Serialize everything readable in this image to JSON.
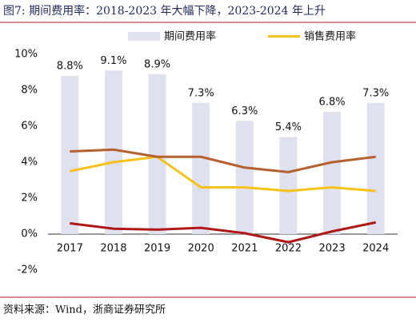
{
  "title": "图7:  期间费用率：2018-2023 年大幅下降，2023-2024 年上升",
  "source": "资料来源：Wind，浙商证券研究所",
  "chart_data": {
    "type": "bar",
    "categories": [
      "2017",
      "2018",
      "2019",
      "2020",
      "2021",
      "2022",
      "2023",
      "2024"
    ],
    "series": [
      {
        "name": "期间费用率",
        "type": "bar",
        "color": "#dfe1ef",
        "values": [
          8.8,
          9.1,
          8.9,
          7.3,
          6.3,
          5.4,
          6.8,
          7.3
        ],
        "value_labels": [
          "8.8%",
          "9.1%",
          "8.9%",
          "7.3%",
          "6.3%",
          "5.4%",
          "6.8%",
          "7.3%"
        ]
      },
      {
        "name": "销售费用率",
        "type": "line",
        "color": "#f5c11a",
        "values": [
          3.5,
          4.0,
          4.3,
          2.6,
          2.6,
          2.4,
          2.6,
          2.4
        ]
      },
      {
        "type": "line",
        "color": "#b5602f",
        "values": [
          4.6,
          4.7,
          4.3,
          4.3,
          3.7,
          3.45,
          4.0,
          4.3
        ]
      },
      {
        "type": "line",
        "color": "#b01818",
        "values": [
          0.6,
          0.3,
          0.25,
          0.35,
          0.05,
          -0.45,
          0.15,
          0.65
        ]
      }
    ],
    "ylim": [
      -2,
      10
    ],
    "yticks": [
      {
        "value": -2,
        "label": "-2%"
      },
      {
        "value": 0,
        "label": "0%"
      },
      {
        "value": 2,
        "label": "2%"
      },
      {
        "value": 4,
        "label": "4%"
      },
      {
        "value": 6,
        "label": "6%"
      },
      {
        "value": 8,
        "label": "8%"
      },
      {
        "value": 10,
        "label": "10%"
      }
    ]
  }
}
